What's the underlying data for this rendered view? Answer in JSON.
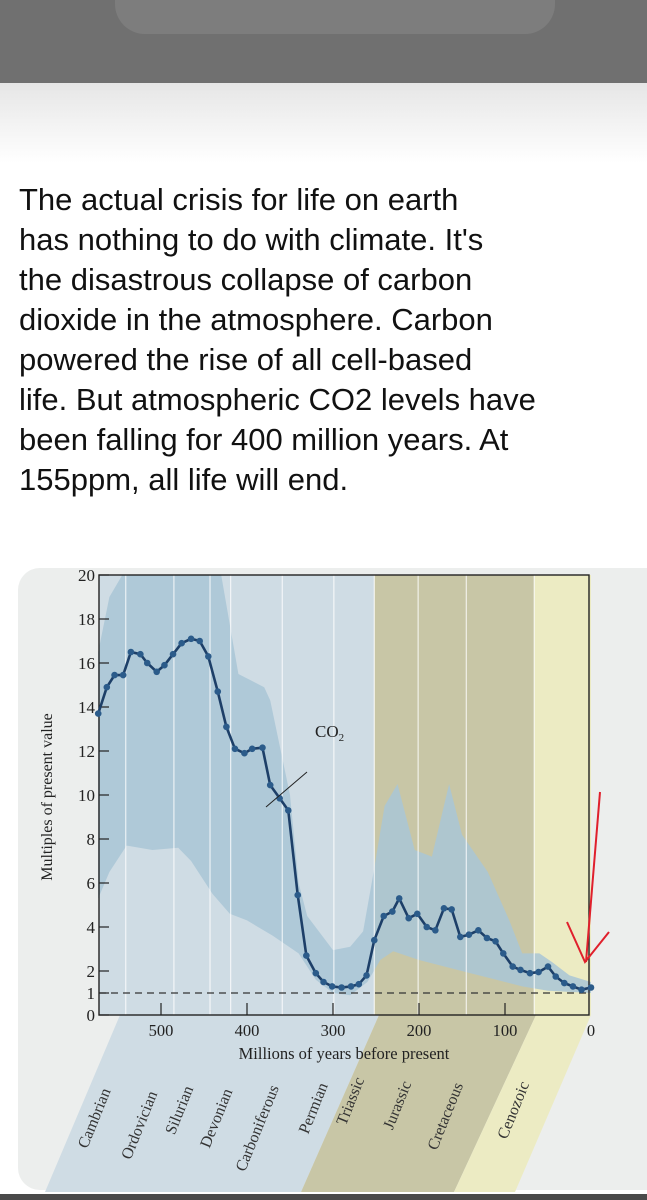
{
  "post": {
    "lines": [
      "The actual crisis for life on earth",
      "has nothing to do with climate. It's",
      "the disastrous collapse of carbon",
      "dioxide in the atmosphere. Carbon",
      "powered the rise of all cell-based",
      "life. But atmospheric CO2 levels have",
      "been falling for 400 million years. At",
      "155ppm, all life will end."
    ]
  },
  "chart_data": {
    "type": "line",
    "title": "",
    "xlabel": "Millions of years before present",
    "ylabel": "Multiples of present value",
    "xlim": [
      572,
      0
    ],
    "ylim": [
      0,
      20
    ],
    "x_reversed": true,
    "xticks": [
      500,
      400,
      300,
      200,
      100,
      0
    ],
    "yticks": [
      0,
      1,
      2,
      4,
      6,
      8,
      10,
      12,
      14,
      16,
      18,
      20
    ],
    "grid": false,
    "reference_line": {
      "y": 1,
      "style": "dashed"
    },
    "series": [
      {
        "name": "CO2",
        "name_main": "CO",
        "name_sub": "2",
        "color": "#1d3f68",
        "x": [
          573,
          563,
          554,
          544,
          535,
          524,
          516,
          505,
          496,
          486,
          476,
          465,
          455,
          445,
          434,
          424,
          414,
          403,
          394,
          382,
          373,
          362,
          352,
          341,
          331,
          320,
          311,
          301,
          290,
          279,
          270,
          261,
          252,
          241,
          231,
          223,
          212,
          202,
          191,
          181,
          171,
          162,
          152,
          142,
          131,
          121,
          111,
          102,
          91,
          82,
          71,
          61,
          50,
          41,
          31,
          21,
          11,
          0
        ],
        "y": [
          13.7,
          14.9,
          15.45,
          15.45,
          16.5,
          16.4,
          16.0,
          15.6,
          15.9,
          16.4,
          16.9,
          17.1,
          17.0,
          16.3,
          14.7,
          13.1,
          12.1,
          11.9,
          12.1,
          12.15,
          10.45,
          9.85,
          9.3,
          5.45,
          2.7,
          1.9,
          1.5,
          1.3,
          1.25,
          1.3,
          1.4,
          1.8,
          3.4,
          4.5,
          4.7,
          5.3,
          4.4,
          4.6,
          4.0,
          3.85,
          4.85,
          4.8,
          3.55,
          3.65,
          3.85,
          3.5,
          3.35,
          2.8,
          2.2,
          2.05,
          1.9,
          1.95,
          2.2,
          1.75,
          1.45,
          1.3,
          1.15,
          1.25
        ]
      }
    ],
    "uncertainty_band": {
      "color": "#a9c5d6",
      "upper": {
        "x": [
          573,
          560,
          545,
          430,
          410,
          380,
          373,
          350,
          340,
          330,
          300,
          280,
          265,
          255,
          240,
          225,
          205,
          185,
          165,
          150,
          120,
          95,
          80,
          60,
          45,
          25,
          0
        ],
        "y": [
          16.5,
          19,
          21,
          21,
          15.5,
          14.9,
          14.3,
          10,
          6,
          4.5,
          2.95,
          3.1,
          3.8,
          6,
          9.5,
          10.5,
          7.5,
          7.2,
          10.5,
          8.2,
          6.5,
          4.3,
          2.8,
          2.8,
          2.4,
          1.8,
          1.5
        ]
      },
      "lower": {
        "x": [
          573,
          560,
          540,
          510,
          480,
          465,
          440,
          420,
          400,
          370,
          340,
          320,
          300,
          280,
          260,
          245,
          230,
          200,
          170,
          140,
          110,
          80,
          50,
          0
        ],
        "y": [
          5.3,
          6.5,
          7.7,
          7.5,
          7.6,
          7.0,
          5.5,
          4.6,
          4.3,
          3.6,
          2.8,
          1.6,
          1.0,
          0.9,
          1.5,
          2.5,
          2.9,
          2.5,
          2.2,
          1.9,
          1.6,
          1.3,
          1.1,
          1.0
        ]
      }
    },
    "period_boundaries": [
      541,
      485,
      443,
      419,
      359,
      299,
      252,
      201,
      145,
      66
    ],
    "eras": [
      {
        "from": 572,
        "to": 252,
        "color": "#cfdce4"
      },
      {
        "from": 252,
        "to": 66,
        "color": "#c8c6a6"
      },
      {
        "from": 66,
        "to": 0,
        "color": "#ecebc3"
      }
    ],
    "periods": [
      "Cambrian",
      "Ordovician",
      "Silurian",
      "Devonian",
      "Carboniferous",
      "Permian",
      "Triassic",
      "Jurassic",
      "Cretaceous",
      "Cenozoic"
    ],
    "annotation": {
      "type": "arrow",
      "color": "#e0202c",
      "points_to_x": 0
    }
  }
}
